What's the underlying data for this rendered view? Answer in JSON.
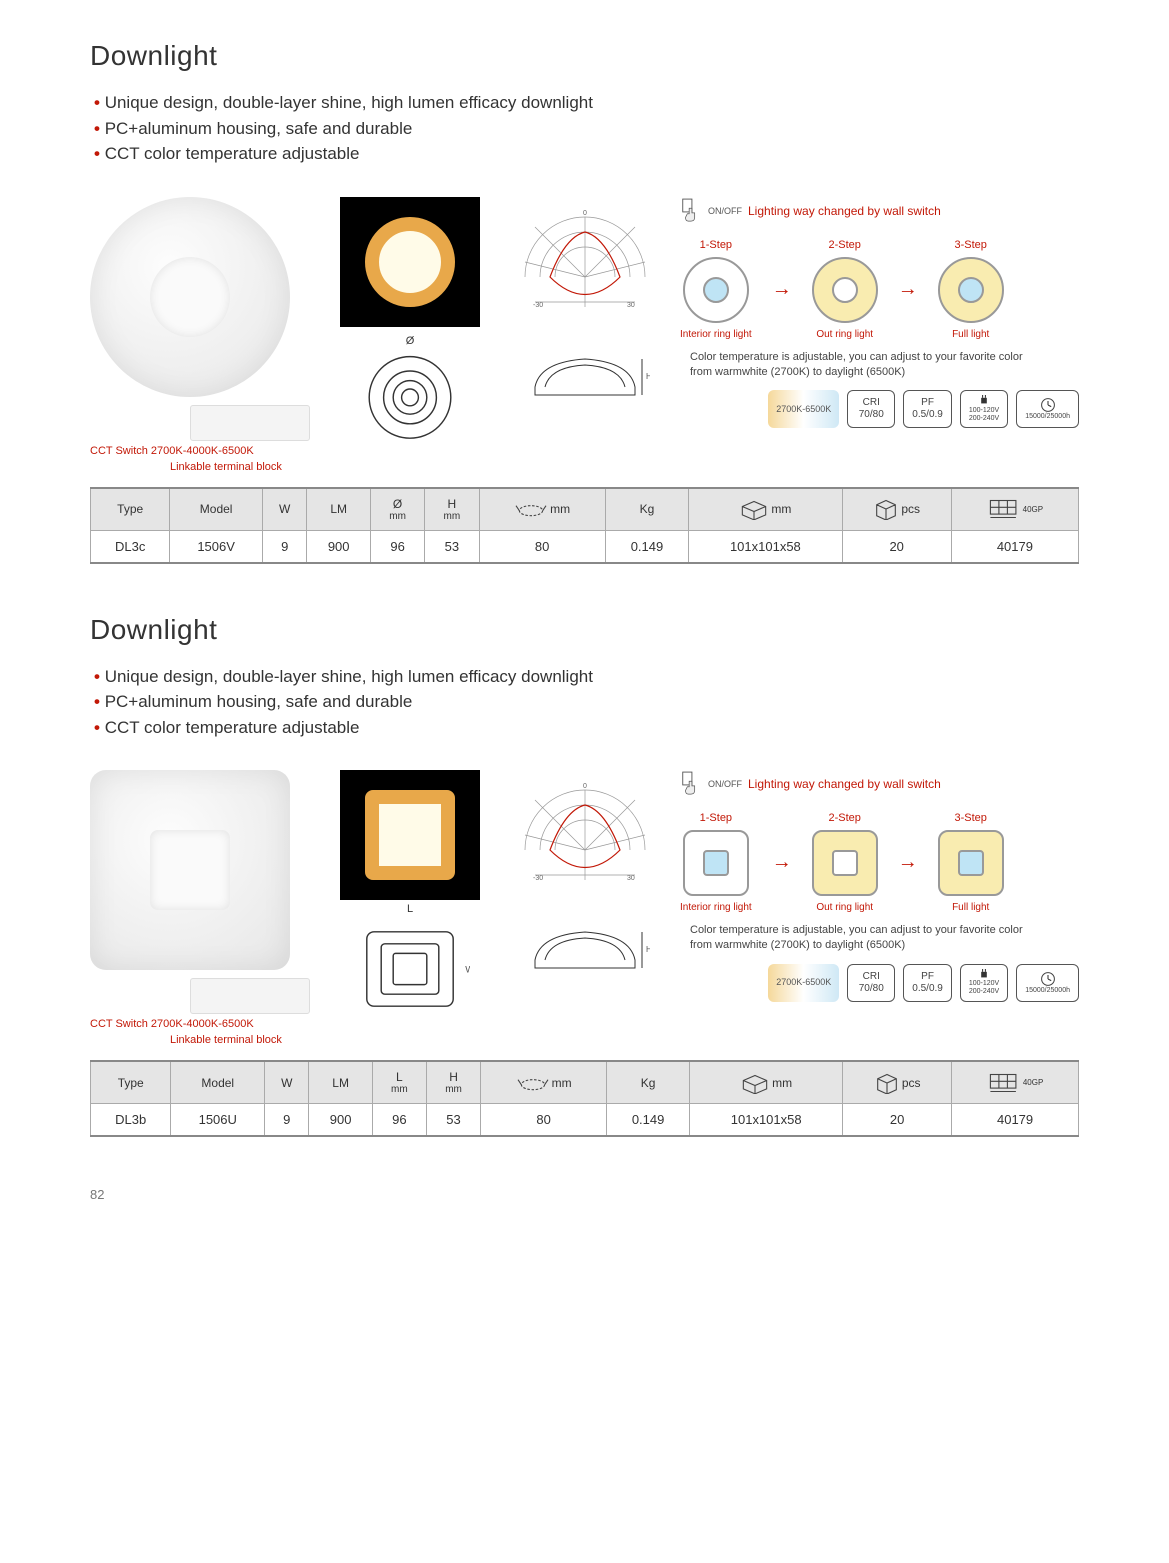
{
  "page_number": "82",
  "sections": [
    {
      "title": "Downlight",
      "bullets": [
        "Unique design, double-layer shine, high lumen efficacy downlight",
        "PC+aluminum housing, safe and durable",
        "CCT color temperature adjustable"
      ],
      "shape": "round",
      "product_labels": {
        "cct_switch": "CCT Switch 2700K-4000K-6500K",
        "linkable": "Linkable terminal block"
      },
      "drawing_dim_label": "Ø",
      "drawing_h_label": "H",
      "switch_note": {
        "onoff": "ON/OFF",
        "text": "Lighting way changed by wall switch"
      },
      "steps": [
        {
          "label": "1-Step",
          "desc": "Interior ring light",
          "outer_fill": "#ffffff",
          "inner_fill": "#bfe4f5"
        },
        {
          "label": "2-Step",
          "desc": "Out ring light",
          "outer_fill": "#f9ecb0",
          "inner_fill": "#ffffff"
        },
        {
          "label": "3-Step",
          "desc": "Full light",
          "outer_fill": "#f9ecb0",
          "inner_fill": "#bfe4f5"
        }
      ],
      "temp_note_1": "Color temperature is adjustable, you can adjust to your favorite color",
      "temp_note_2": "from warmwhite (2700K) to daylight (6500K)",
      "badges": {
        "cct_range": "2700K-6500K",
        "cri_label": "CRI",
        "cri_value": "70/80",
        "pf_label": "PF",
        "pf_value": "0.5/0.9",
        "voltage_1": "100-120V",
        "voltage_2": "200-240V",
        "life": "15000/25000h"
      },
      "polar": {
        "angle_labels": [
          "-30",
          "0",
          "30"
        ],
        "radial_labels": [
          "10",
          "45",
          "-40",
          "-10"
        ],
        "line_color": "#c21807",
        "grid_color": "#999",
        "bg": "#ffffff"
      },
      "table": {
        "headers": [
          "Type",
          "Model",
          "W",
          "LM",
          "Ø mm",
          "H mm",
          "mm",
          "Kg",
          "mm",
          "pcs",
          ""
        ],
        "header_icons": [
          null,
          null,
          null,
          null,
          null,
          null,
          "cutout",
          null,
          "box",
          "carton",
          "pallet"
        ],
        "last_header_text": "40GP",
        "rows": [
          [
            "DL3c",
            "1506V",
            "9",
            "900",
            "96",
            "53",
            "80",
            "0.149",
            "101x101x58",
            "20",
            "40179"
          ]
        ]
      }
    },
    {
      "title": "Downlight",
      "bullets": [
        "Unique design, double-layer shine, high lumen efficacy downlight",
        "PC+aluminum housing, safe and durable",
        "CCT color temperature adjustable"
      ],
      "shape": "square",
      "product_labels": {
        "cct_switch": "CCT Switch 2700K-4000K-6500K",
        "linkable": "Linkable terminal block"
      },
      "drawing_dim_label": "L",
      "drawing_w_label": "W",
      "drawing_h_label": "H",
      "switch_note": {
        "onoff": "ON/OFF",
        "text": "Lighting way changed by wall switch"
      },
      "steps": [
        {
          "label": "1-Step",
          "desc": "Interior ring light",
          "outer_fill": "#ffffff",
          "inner_fill": "#bfe4f5"
        },
        {
          "label": "2-Step",
          "desc": "Out ring light",
          "outer_fill": "#f9ecb0",
          "inner_fill": "#ffffff"
        },
        {
          "label": "3-Step",
          "desc": "Full light",
          "outer_fill": "#f9ecb0",
          "inner_fill": "#bfe4f5"
        }
      ],
      "temp_note_1": "Color temperature is adjustable, you can adjust to your favorite color",
      "temp_note_2": "from warmwhite (2700K) to daylight (6500K)",
      "badges": {
        "cct_range": "2700K-6500K",
        "cri_label": "CRI",
        "cri_value": "70/80",
        "pf_label": "PF",
        "pf_value": "0.5/0.9",
        "voltage_1": "100-120V",
        "voltage_2": "200-240V",
        "life": "15000/25000h"
      },
      "polar": {
        "angle_labels": [
          "-30",
          "0",
          "30"
        ],
        "radial_labels": [
          "10",
          "45",
          "-40",
          "-10"
        ],
        "line_color": "#c21807",
        "grid_color": "#999",
        "bg": "#ffffff"
      },
      "table": {
        "headers": [
          "Type",
          "Model",
          "W",
          "LM",
          "L mm",
          "H mm",
          "mm",
          "Kg",
          "mm",
          "pcs",
          ""
        ],
        "header_icons": [
          null,
          null,
          null,
          null,
          null,
          null,
          "cutout",
          null,
          "box",
          "carton",
          "pallet"
        ],
        "last_header_text": "40GP",
        "rows": [
          [
            "DL3b",
            "1506U",
            "9",
            "900",
            "96",
            "53",
            "80",
            "0.149",
            "101x101x58",
            "20",
            "40179"
          ]
        ]
      }
    }
  ],
  "colors": {
    "accent": "#c21807",
    "text": "#333333",
    "header_bg": "#e5e5e5",
    "border": "#aaaaaa"
  }
}
